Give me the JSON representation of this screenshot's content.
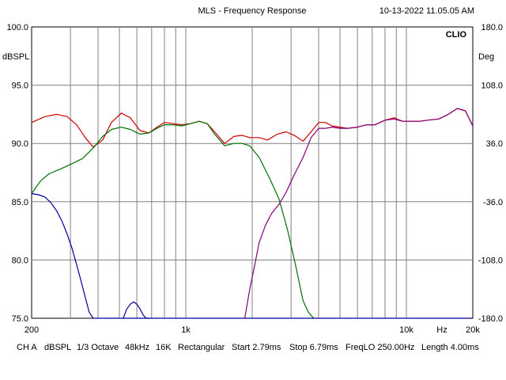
{
  "header": {
    "title": "MLS - Frequency Response",
    "timestamp": "10-13-2022 11.05.05 AM",
    "brand": "CLIO"
  },
  "footer": {
    "channel": "CH A",
    "unit": "dBSPL",
    "smoothing": "1/3 Octave",
    "sample_rate": "48kHz",
    "size": "16K",
    "window": "Rectangular",
    "start": "Start 2.79ms",
    "stop": "Stop 6.79ms",
    "freqlo": "FreqLO 250.00Hz",
    "length": "Length 4.00ms"
  },
  "colors": {
    "grid": "#808080",
    "magnitude": "#cc0000",
    "woofer": "#007000",
    "tweeter": "#800080",
    "phase": "#000099"
  },
  "chart_data": {
    "type": "line",
    "title": "MLS - Frequency Response",
    "x_scale": "log",
    "xlim": [
      200,
      20000
    ],
    "ylim": [
      75,
      100
    ],
    "y2lim": [
      -180,
      180
    ],
    "grid": true,
    "ylabel": "dBSPL",
    "y2label": "Deg",
    "x_tick_labels": [
      {
        "value": 200,
        "label": "200"
      },
      {
        "value": 1000,
        "label": "1k"
      },
      {
        "value": 10000,
        "label": "10k"
      },
      {
        "value": 14500,
        "label": "Hz"
      },
      {
        "value": 20000,
        "label": "20k"
      }
    ],
    "y_ticks": [
      {
        "value": 100,
        "label": "100.0"
      },
      {
        "value": 95,
        "label": "95.0"
      },
      {
        "value": 90,
        "label": "90.0"
      },
      {
        "value": 85,
        "label": "85.0"
      },
      {
        "value": 80,
        "label": "80.0"
      },
      {
        "value": 75,
        "label": "75.0"
      }
    ],
    "y2_ticks": [
      {
        "value": 180,
        "label": "180.0"
      },
      {
        "value": 108,
        "label": "108.0"
      },
      {
        "value": 36,
        "label": "36.0"
      },
      {
        "value": -36,
        "label": "-36.0"
      },
      {
        "value": -108,
        "label": "-108.0"
      },
      {
        "value": -180,
        "label": "-180.0"
      }
    ],
    "series": [
      {
        "key": "red",
        "color": "#cc0000",
        "x": [
          200,
          230,
          260,
          290,
          320,
          350,
          380,
          420,
          460,
          510,
          560,
          620,
          680,
          740,
          800,
          880,
          960,
          1050,
          1150,
          1250,
          1350,
          1500,
          1650,
          1800,
          1950,
          2150,
          2350,
          2600,
          2850,
          3100,
          3400,
          3700,
          4000,
          4300,
          4600,
          5000,
          5400,
          6000,
          6600,
          7200,
          8000,
          8800,
          9600,
          10500,
          11500,
          12500,
          14000,
          15500,
          17000,
          18500,
          20000
        ],
        "y": [
          91.8,
          92.3,
          92.5,
          92.3,
          91.6,
          90.5,
          89.7,
          90.3,
          91.8,
          92.6,
          92.2,
          91.1,
          90.9,
          91.4,
          91.8,
          91.7,
          91.6,
          91.7,
          91.9,
          91.7,
          91.0,
          90.0,
          90.6,
          90.7,
          90.5,
          90.5,
          90.3,
          90.8,
          91.0,
          90.7,
          90.2,
          91.0,
          91.8,
          91.8,
          91.5,
          91.4,
          91.3,
          91.4,
          91.6,
          91.6,
          92.0,
          92.2,
          91.9,
          91.9,
          91.9,
          92.0,
          92.1,
          92.5,
          93.0,
          92.8,
          91.5
        ]
      },
      {
        "key": "green",
        "color": "#007000",
        "x": [
          200,
          220,
          240,
          270,
          300,
          340,
          380,
          420,
          460,
          510,
          560,
          620,
          680,
          740,
          800,
          880,
          960,
          1050,
          1150,
          1250,
          1350,
          1500,
          1650,
          1800,
          1950,
          2150,
          2400,
          2650,
          2900,
          3150,
          3400,
          3600,
          3800
        ],
        "y": [
          85.7,
          86.8,
          87.4,
          87.8,
          88.2,
          88.7,
          89.6,
          90.6,
          91.2,
          91.4,
          91.2,
          90.8,
          90.9,
          91.3,
          91.6,
          91.6,
          91.5,
          91.7,
          91.9,
          91.7,
          90.8,
          89.8,
          90.0,
          90.0,
          89.8,
          88.8,
          87.0,
          85.2,
          82.5,
          79.5,
          76.5,
          75.5,
          75.0
        ]
      },
      {
        "key": "purple",
        "color": "#800080",
        "x": [
          1850,
          1950,
          2050,
          2150,
          2300,
          2450,
          2650,
          2850,
          3100,
          3400,
          3700,
          4000,
          4300,
          4600,
          5000,
          5400,
          6000,
          6600,
          7200,
          8000,
          8800,
          9600,
          10500,
          11500,
          12500,
          14000,
          15500,
          17000,
          18500,
          20000
        ],
        "y": [
          75.0,
          77.5,
          79.5,
          81.5,
          83.0,
          84.0,
          84.8,
          85.8,
          87.3,
          88.8,
          90.5,
          91.3,
          91.3,
          91.4,
          91.3,
          91.3,
          91.4,
          91.6,
          91.6,
          92.0,
          92.1,
          91.9,
          91.9,
          91.9,
          92.0,
          92.1,
          92.5,
          93.0,
          92.8,
          91.5
        ]
      },
      {
        "key": "blue",
        "color": "#000099",
        "x": [
          200,
          215,
          230,
          245,
          260,
          275,
          290,
          305,
          320,
          335,
          350,
          365,
          380,
          395,
          400,
          1850,
          20000
        ],
        "y": [
          85.7,
          85.6,
          85.4,
          84.9,
          84.2,
          83.3,
          82.2,
          81.0,
          79.6,
          78.2,
          76.8,
          75.5,
          75.0,
          75.0,
          75.0,
          75.0,
          75.0
        ]
      },
      {
        "key": "blue-bump",
        "color": "#000099",
        "x": [
          520,
          540,
          560,
          580,
          600,
          620,
          640,
          660,
          680
        ],
        "y": [
          75.0,
          75.8,
          76.2,
          76.4,
          76.2,
          75.8,
          75.3,
          75.0,
          75.0
        ]
      }
    ]
  }
}
